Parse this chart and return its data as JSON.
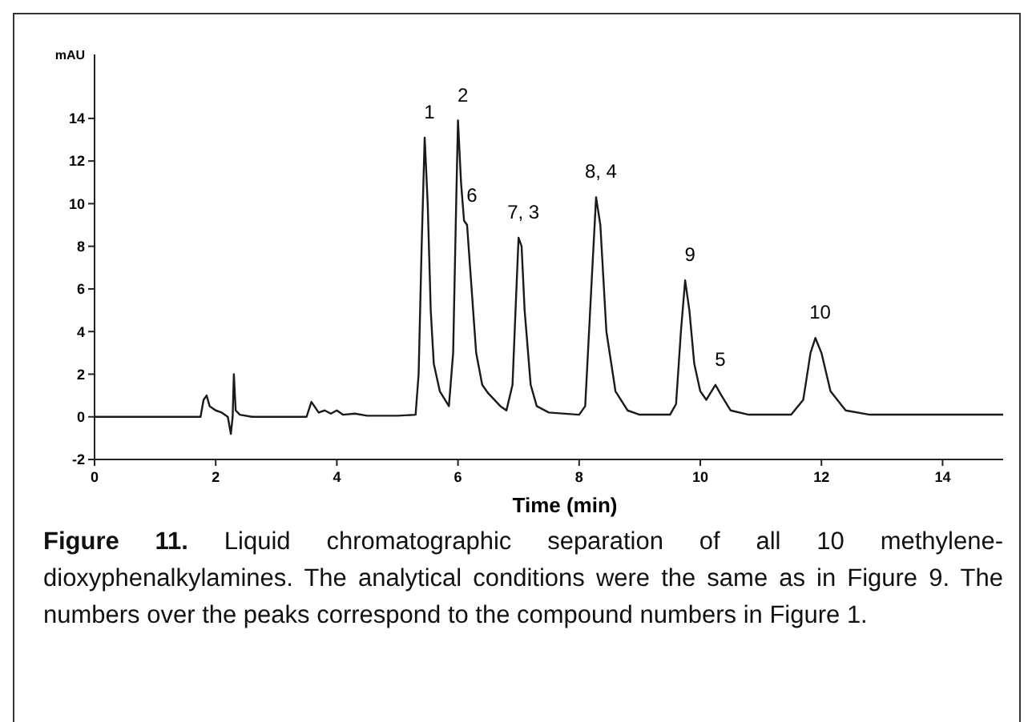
{
  "chart_data": {
    "type": "line",
    "xlabel": "Time (min)",
    "ylabel": "mAU",
    "xlim": [
      0,
      15
    ],
    "ylim": [
      -2,
      17
    ],
    "xticks": [
      0,
      2,
      4,
      6,
      8,
      10,
      12,
      14
    ],
    "yticks": [
      -2,
      0,
      2,
      4,
      6,
      8,
      10,
      12,
      14
    ],
    "grid": false,
    "marker": "none",
    "line_style": "solid",
    "series": [
      {
        "color": "#1a1a1a",
        "x": [
          0,
          1.75,
          1.8,
          1.85,
          1.9,
          2.0,
          2.1,
          2.2,
          2.25,
          2.28,
          2.3,
          2.33,
          2.4,
          2.6,
          3.5,
          3.58,
          3.7,
          3.8,
          3.9,
          4.0,
          4.1,
          4.3,
          4.5,
          5.0,
          5.3,
          5.35,
          5.4,
          5.45,
          5.5,
          5.55,
          5.6,
          5.7,
          5.85,
          5.92,
          5.97,
          6.0,
          6.05,
          6.1,
          6.15,
          6.2,
          6.3,
          6.4,
          6.5,
          6.7,
          6.8,
          6.9,
          6.95,
          7.0,
          7.05,
          7.1,
          7.2,
          7.3,
          7.5,
          8.0,
          8.1,
          8.2,
          8.28,
          8.35,
          8.45,
          8.6,
          8.8,
          9.0,
          9.5,
          9.6,
          9.68,
          9.75,
          9.82,
          9.9,
          10.0,
          10.1,
          10.25,
          10.35,
          10.5,
          10.8,
          11.5,
          11.7,
          11.82,
          11.9,
          12.0,
          12.15,
          12.4,
          12.8,
          15
        ],
        "values": [
          0,
          0,
          0.8,
          1.0,
          0.5,
          0.3,
          0.2,
          0,
          -0.8,
          0,
          2.0,
          0.3,
          0.1,
          0,
          0,
          0.7,
          0.2,
          0.3,
          0.15,
          0.3,
          0.1,
          0.15,
          0.05,
          0.05,
          0.1,
          2,
          8,
          13.1,
          10,
          5,
          2.5,
          1.2,
          0.5,
          3,
          10,
          13.9,
          11,
          9.2,
          9,
          7,
          3,
          1.5,
          1.1,
          0.5,
          0.3,
          1.5,
          5,
          8.4,
          8,
          5,
          1.5,
          0.5,
          0.2,
          0.1,
          0.5,
          6,
          10.3,
          9,
          4,
          1.2,
          0.3,
          0.1,
          0.1,
          0.6,
          4,
          6.4,
          5,
          2.5,
          1.2,
          0.8,
          1.5,
          1.0,
          0.3,
          0.1,
          0.1,
          0.8,
          3,
          3.7,
          3,
          1.2,
          0.3,
          0.1,
          0.1
        ]
      }
    ],
    "annotations": [
      {
        "text": "1",
        "x": 5.45,
        "y": 13.1
      },
      {
        "text": "2",
        "x": 6.0,
        "y": 13.9
      },
      {
        "text": "6",
        "x": 6.15,
        "y": 9.2
      },
      {
        "text": "7, 3",
        "x": 7.0,
        "y": 8.4
      },
      {
        "text": "8, 4",
        "x": 8.28,
        "y": 10.3
      },
      {
        "text": "9",
        "x": 9.75,
        "y": 6.4
      },
      {
        "text": "5",
        "x": 10.25,
        "y": 1.5
      },
      {
        "text": "10",
        "x": 11.9,
        "y": 3.7
      },
      "Figure 11.",
      "Liquid chromatographic separation of all 10 methylene-dioxyphenalkylamines. The analytical conditions were the same as in Figure 9. The numbers over the peaks correspond to the compound numbers in Figure 1."
    ]
  }
}
